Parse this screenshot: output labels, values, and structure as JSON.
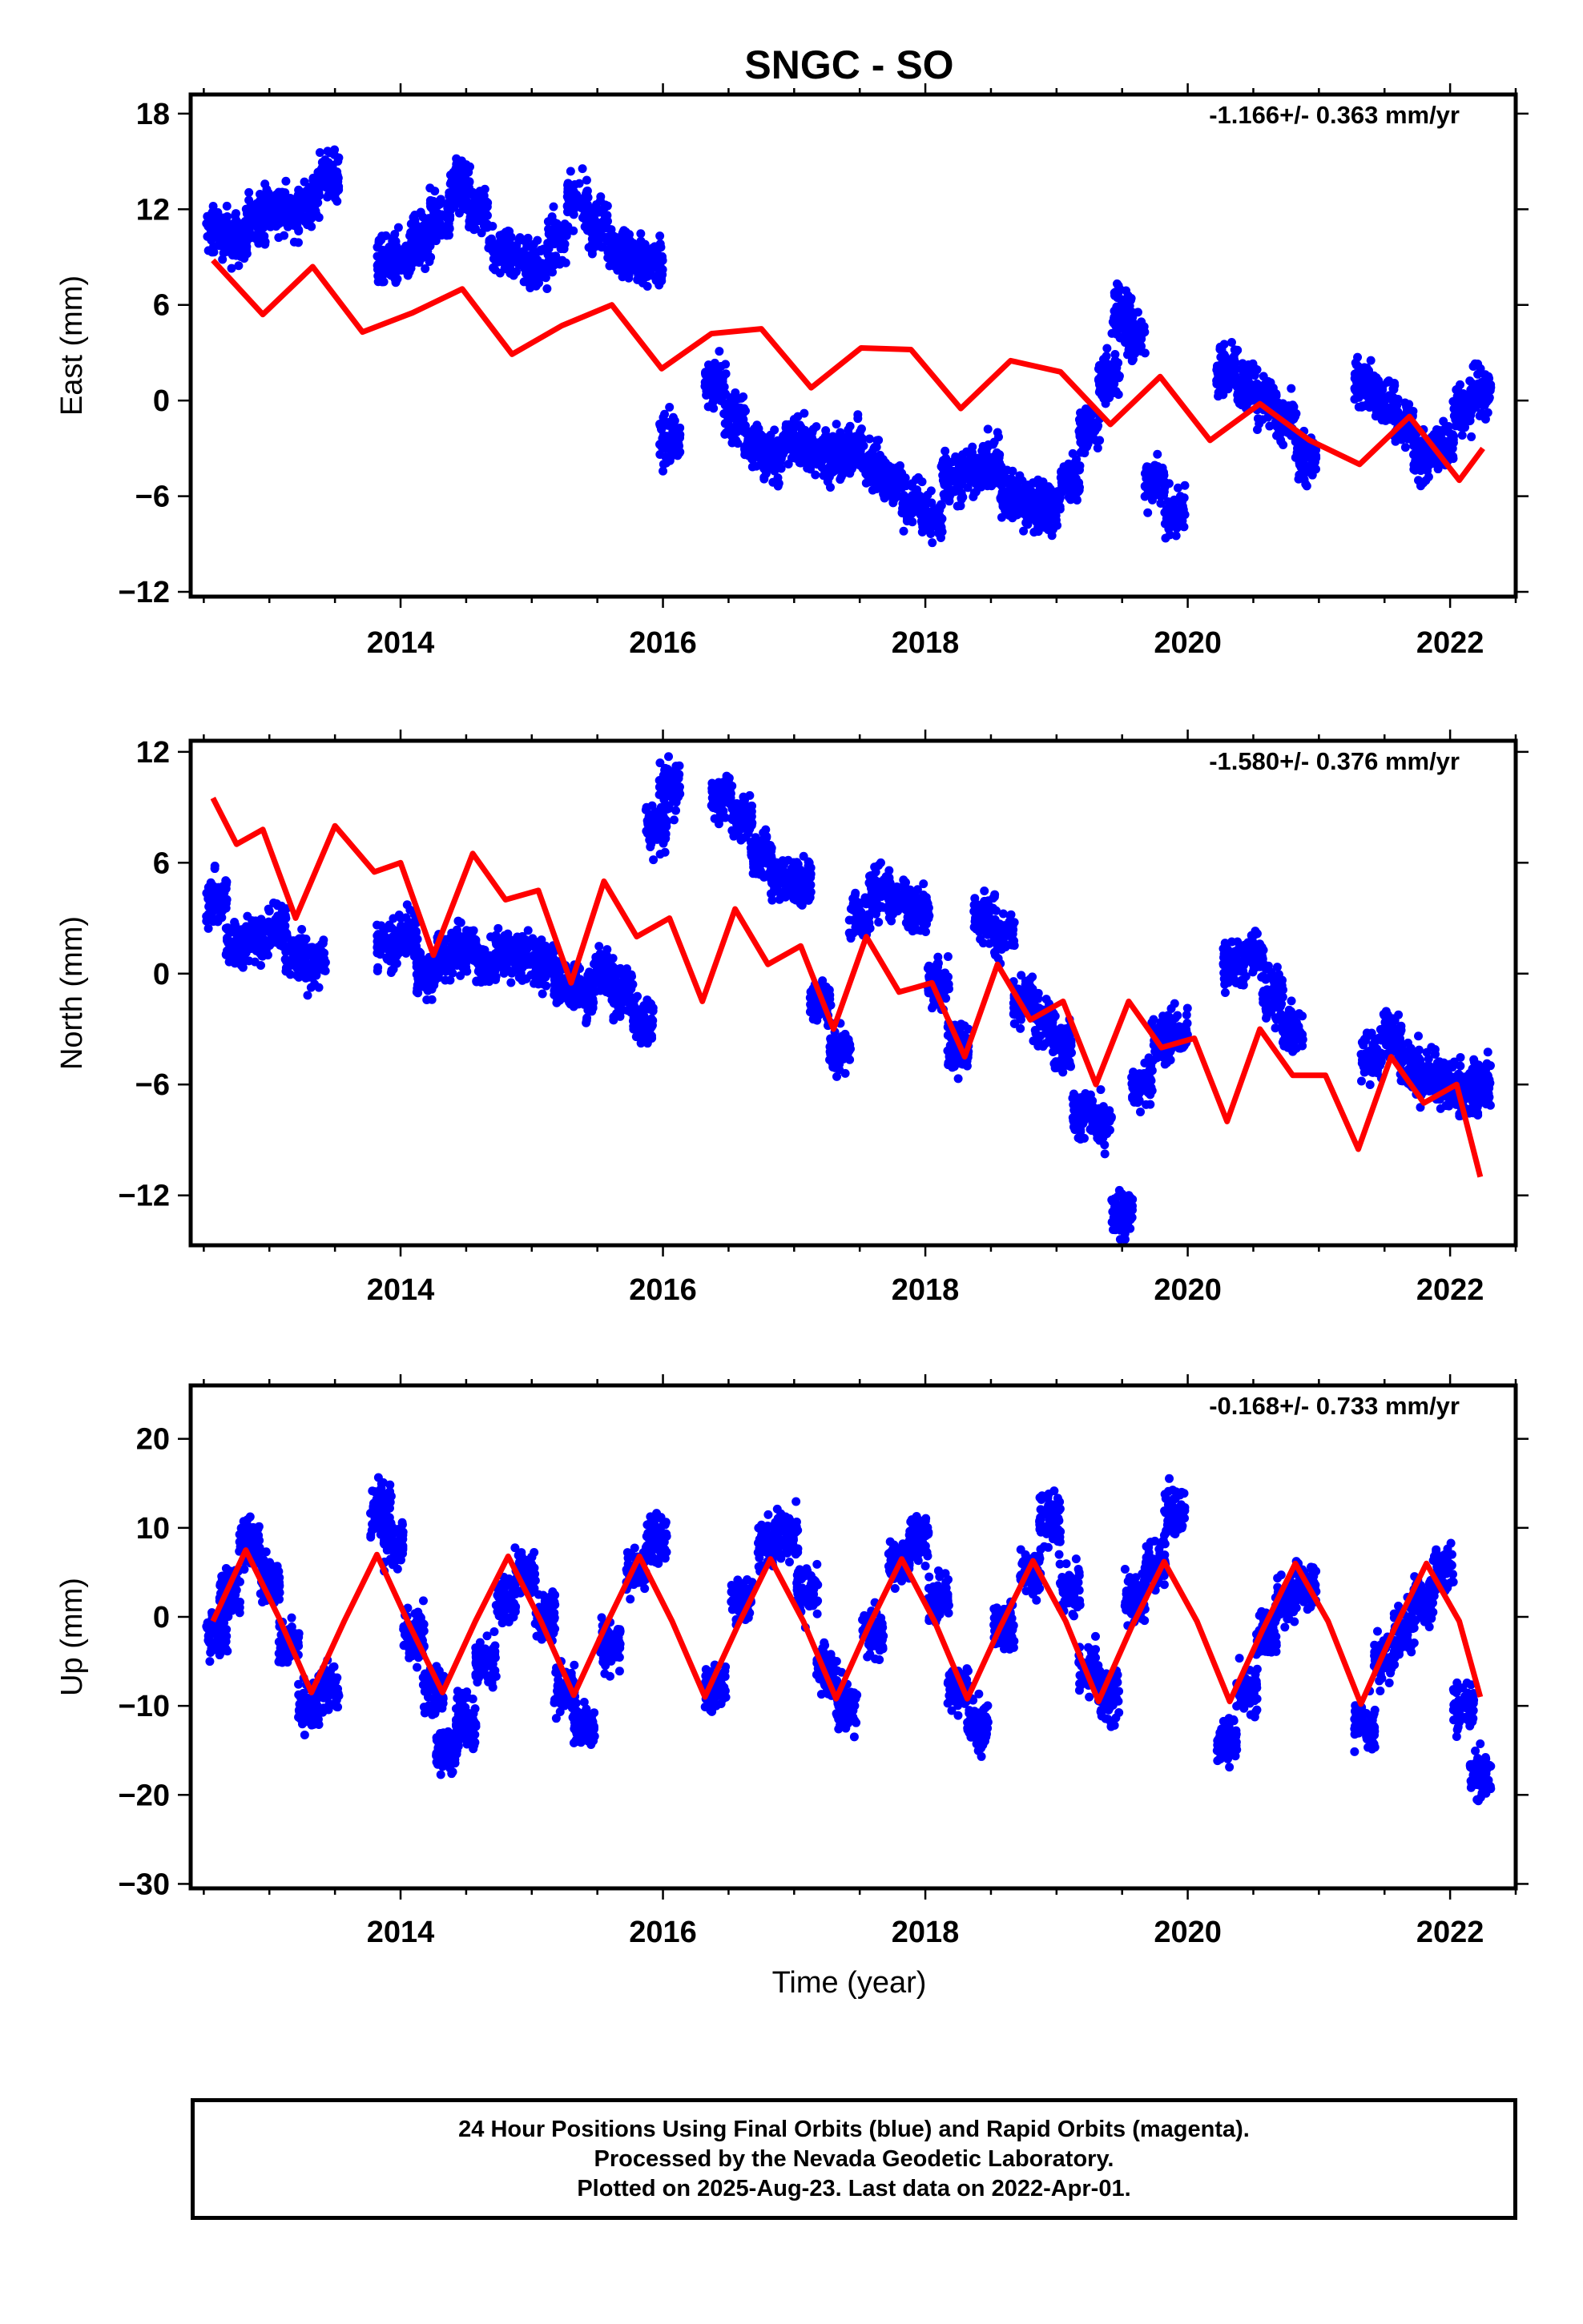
{
  "title": "SNGC - SO",
  "colors": {
    "data_points": "#0000ff",
    "model_line": "#ff0000",
    "frame": "#000000"
  },
  "xlabel": "Time (year)",
  "x_ticks": [
    2014,
    2016,
    2018,
    2020,
    2022
  ],
  "footer": {
    "line1": "24 Hour Positions Using Final Orbits (blue) and Rapid Orbits (magenta).",
    "line2": "Processed by the Nevada Geodetic Laboratory.",
    "line3": "Plotted on 2025-Aug-23. Last data on 2022-Apr-01."
  },
  "chart_data": [
    {
      "type": "scatter",
      "panel": "east",
      "ylabel": "East (mm)",
      "rate_label": "-1.166+/- 0.363 mm/yr",
      "xlim": [
        2012.4,
        2022.5
      ],
      "ylim": [
        -12.3,
        19.2
      ],
      "y_ticks": [
        -12,
        -6,
        0,
        6,
        12,
        18
      ],
      "series": [
        {
          "kind": "points",
          "x": [
            2012.6,
            2012.75,
            2012.9,
            2013.0,
            2013.15,
            2013.3,
            2013.45,
            2013.9,
            2014.0,
            2014.15,
            2014.3,
            2014.45,
            2014.6,
            2014.75,
            2014.9,
            2015.05,
            2015.2,
            2015.35,
            2015.5,
            2015.65,
            2015.8,
            2015.92,
            2016.05,
            2016.4,
            2016.55,
            2016.7,
            2016.85,
            2017.0,
            2017.15,
            2017.3,
            2017.45,
            2017.6,
            2017.75,
            2017.9,
            2018.05,
            2018.2,
            2018.35,
            2018.5,
            2018.65,
            2018.8,
            2018.95,
            2019.1,
            2019.25,
            2019.4,
            2019.5,
            2019.6,
            2019.75,
            2019.9,
            2020.3,
            2020.45,
            2020.6,
            2020.75,
            2020.9,
            2021.35,
            2021.5,
            2021.65,
            2021.8,
            2021.95,
            2022.1,
            2022.23
          ],
          "y": [
            10.5,
            10.0,
            11.5,
            12.0,
            11.8,
            12.5,
            14.0,
            8.5,
            9.0,
            10.0,
            11.5,
            13.5,
            12.0,
            9.5,
            9.0,
            8.5,
            10.0,
            12.5,
            11.0,
            9.5,
            9.0,
            8.5,
            -2.5,
            1.0,
            -1.0,
            -3.0,
            -3.5,
            -2.5,
            -3.0,
            -3.5,
            -3.0,
            -4.0,
            -5.0,
            -6.5,
            -7.5,
            -5.0,
            -4.5,
            -4.0,
            -6.0,
            -6.5,
            -6.5,
            -5.0,
            -2.0,
            1.5,
            5.5,
            4.0,
            -5.0,
            -7.0,
            2.0,
            1.0,
            0.0,
            -1.5,
            -3.5,
            1.0,
            0.0,
            -1.5,
            -3.5,
            -3.0,
            -0.5,
            0.5
          ]
        },
        {
          "kind": "model",
          "x": [
            2012.57,
            2012.95,
            2013.33,
            2013.71,
            2014.09,
            2014.47,
            2014.85,
            2015.23,
            2015.61,
            2015.99,
            2016.37,
            2016.75,
            2017.13,
            2017.51,
            2017.89,
            2018.27,
            2018.65,
            2019.03,
            2019.41,
            2019.79,
            2020.17,
            2020.55,
            2020.93,
            2021.31,
            2021.69,
            2022.07,
            2022.25
          ],
          "y": [
            8.8,
            5.4,
            8.4,
            4.3,
            5.5,
            7.0,
            2.9,
            4.7,
            6.0,
            2.0,
            4.2,
            4.5,
            0.8,
            3.3,
            3.2,
            -0.5,
            2.5,
            1.8,
            -1.5,
            1.5,
            -2.5,
            -0.2,
            -2.5,
            -4.0,
            -1.0,
            -5.0,
            -3.0
          ]
        }
      ]
    },
    {
      "type": "scatter",
      "panel": "north",
      "ylabel": "North (mm)",
      "rate_label": "-1.580+/- 0.376 mm/yr",
      "xlim": [
        2012.4,
        2022.5
      ],
      "ylim": [
        -14.7,
        12.6
      ],
      "y_ticks": [
        -12,
        -6,
        0,
        6,
        12
      ],
      "series": [
        {
          "kind": "points",
          "x": [
            2012.6,
            2012.75,
            2012.9,
            2013.05,
            2013.2,
            2013.35,
            2013.9,
            2014.05,
            2014.2,
            2014.35,
            2014.5,
            2014.65,
            2014.8,
            2014.95,
            2015.1,
            2015.25,
            2015.4,
            2015.55,
            2015.7,
            2015.85,
            2015.95,
            2016.05,
            2016.45,
            2016.6,
            2016.75,
            2016.9,
            2017.05,
            2017.2,
            2017.35,
            2017.5,
            2017.65,
            2017.8,
            2017.95,
            2018.1,
            2018.25,
            2018.45,
            2018.6,
            2018.75,
            2018.9,
            2019.05,
            2019.2,
            2019.35,
            2019.5,
            2019.65,
            2019.8,
            2019.92,
            2020.35,
            2020.5,
            2020.65,
            2020.8,
            2021.4,
            2021.55,
            2021.7,
            2021.85,
            2022.0,
            2022.15,
            2022.23
          ],
          "y": [
            4.0,
            1.5,
            2.0,
            2.5,
            1.0,
            0.5,
            1.5,
            2.0,
            0.0,
            1.0,
            1.5,
            0.5,
            1.0,
            1.0,
            0.5,
            -0.5,
            -1.0,
            0.0,
            -1.0,
            -2.5,
            8.0,
            10.0,
            9.5,
            8.5,
            6.5,
            5.0,
            5.0,
            -1.5,
            -4.0,
            3.0,
            4.5,
            4.0,
            3.5,
            -0.5,
            -4.0,
            3.0,
            2.0,
            -1.5,
            -2.5,
            -4.0,
            -7.5,
            -8.0,
            -13.0,
            -6.0,
            -3.5,
            -3.0,
            0.5,
            1.0,
            -1.0,
            -3.0,
            -4.5,
            -3.5,
            -5.0,
            -5.5,
            -6.0,
            -6.5,
            -6.0
          ]
        },
        {
          "kind": "model",
          "x": [
            2012.57,
            2012.75,
            2012.95,
            2013.2,
            2013.5,
            2013.8,
            2014.0,
            2014.25,
            2014.55,
            2014.8,
            2015.05,
            2015.3,
            2015.55,
            2015.8,
            2016.05,
            2016.3,
            2016.55,
            2016.8,
            2017.05,
            2017.3,
            2017.55,
            2017.8,
            2018.05,
            2018.3,
            2018.55,
            2018.8,
            2019.05,
            2019.3,
            2019.55,
            2019.8,
            2020.05,
            2020.3,
            2020.55,
            2020.8,
            2021.05,
            2021.3,
            2021.55,
            2021.8,
            2022.05,
            2022.23
          ],
          "y": [
            9.5,
            7.0,
            7.8,
            3.0,
            8.0,
            5.5,
            6.0,
            1.0,
            6.5,
            4.0,
            4.5,
            -0.5,
            5.0,
            2.0,
            3.0,
            -1.5,
            3.5,
            0.5,
            1.5,
            -3.0,
            2.0,
            -1.0,
            -0.5,
            -4.5,
            0.5,
            -2.5,
            -1.5,
            -6.0,
            -1.5,
            -4.0,
            -3.5,
            -8.0,
            -3.0,
            -5.5,
            -5.5,
            -9.5,
            -4.5,
            -7.0,
            -6.0,
            -11.0
          ]
        }
      ]
    },
    {
      "type": "scatter",
      "panel": "up",
      "ylabel": "Up (mm)",
      "rate_label": "-0.168+/- 0.733 mm/yr",
      "xlim": [
        2012.4,
        2022.5
      ],
      "ylim": [
        -30.5,
        26.0
      ],
      "y_ticks": [
        -30,
        -20,
        -10,
        0,
        10,
        20
      ],
      "series": [
        {
          "kind": "points",
          "x": [
            2012.6,
            2012.7,
            2012.85,
            2013.0,
            2013.15,
            2013.3,
            2013.45,
            2013.85,
            2013.95,
            2014.1,
            2014.25,
            2014.35,
            2014.5,
            2014.65,
            2014.8,
            2014.95,
            2015.1,
            2015.25,
            2015.4,
            2015.6,
            2015.8,
            2015.95,
            2016.4,
            2016.6,
            2016.8,
            2016.95,
            2017.1,
            2017.25,
            2017.4,
            2017.6,
            2017.8,
            2017.95,
            2018.1,
            2018.25,
            2018.4,
            2018.6,
            2018.8,
            2018.95,
            2019.1,
            2019.25,
            2019.4,
            2019.6,
            2019.75,
            2019.9,
            2020.3,
            2020.45,
            2020.6,
            2020.75,
            2020.9,
            2021.35,
            2021.5,
            2021.65,
            2021.8,
            2021.95,
            2022.1,
            2022.23
          ],
          "y": [
            -2.0,
            3.0,
            8.0,
            4.0,
            -3.0,
            -10.0,
            -8.0,
            12.0,
            8.0,
            -2.0,
            -8.0,
            -15.0,
            -12.0,
            -5.0,
            2.0,
            5.0,
            0.0,
            -8.0,
            -12.0,
            -3.0,
            5.0,
            9.0,
            -8.0,
            2.0,
            8.0,
            9.0,
            3.0,
            -6.0,
            -10.0,
            -2.0,
            6.0,
            9.0,
            2.0,
            -8.0,
            -12.0,
            -1.0,
            5.0,
            11.0,
            3.0,
            -6.0,
            -9.0,
            2.0,
            6.0,
            12.0,
            -14.0,
            -8.0,
            -2.0,
            2.0,
            4.0,
            -12.0,
            -5.0,
            -1.0,
            2.0,
            5.0,
            -10.0,
            -18.0
          ]
        },
        {
          "kind": "model",
          "x": [
            2012.57,
            2012.82,
            2013.07,
            2013.32,
            2013.57,
            2013.82,
            2014.07,
            2014.32,
            2014.57,
            2014.82,
            2015.07,
            2015.32,
            2015.57,
            2015.82,
            2016.07,
            2016.32,
            2016.57,
            2016.82,
            2017.07,
            2017.32,
            2017.57,
            2017.82,
            2018.07,
            2018.32,
            2018.57,
            2018.82,
            2019.07,
            2019.32,
            2019.57,
            2019.82,
            2020.07,
            2020.32,
            2020.57,
            2020.82,
            2021.07,
            2021.32,
            2021.57,
            2021.82,
            2022.07,
            2022.23
          ],
          "y": [
            -0.5,
            7.5,
            0.0,
            -8.5,
            -0.5,
            7.0,
            -1.0,
            -8.5,
            -0.5,
            6.8,
            -0.5,
            -8.8,
            -0.8,
            6.8,
            -0.5,
            -9.0,
            -1.0,
            6.5,
            -0.5,
            -9.2,
            -1.0,
            6.5,
            -0.5,
            -9.2,
            -1.2,
            6.3,
            -0.5,
            -9.5,
            -1.2,
            6.2,
            -0.5,
            -9.5,
            -1.5,
            6.0,
            -0.5,
            -9.8,
            -1.5,
            6.0,
            -0.5,
            -9.0
          ]
        }
      ]
    }
  ]
}
